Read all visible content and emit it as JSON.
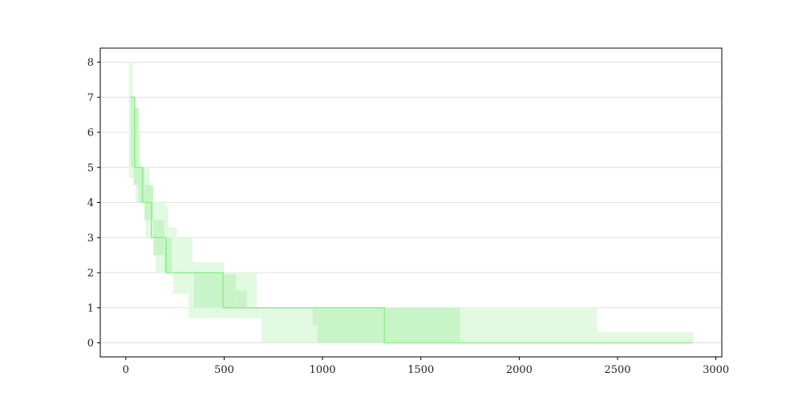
{
  "chart_data": {
    "type": "line",
    "title": "",
    "xlabel": "",
    "ylabel": "",
    "xlim": [
      -130,
      3030
    ],
    "ylim": [
      -0.4,
      8.4
    ],
    "x_ticks": [
      0,
      500,
      1000,
      1500,
      2000,
      2500,
      3000
    ],
    "y_ticks": [
      0,
      1,
      2,
      3,
      4,
      5,
      6,
      7,
      8
    ],
    "grid": {
      "y": true,
      "x": false
    },
    "legend": "none",
    "colors": {
      "line": "#90ee90",
      "inner_band": "#c8f5c8",
      "outer_band": "#e2f9e2",
      "grid": "#e0e0e0",
      "axis": "#000000"
    },
    "series": [
      {
        "role": "median",
        "points": [
          [
            20,
            7
          ],
          [
            45,
            7
          ],
          [
            45,
            5
          ],
          [
            85,
            5
          ],
          [
            85,
            4
          ],
          [
            130,
            4
          ],
          [
            130,
            3
          ],
          [
            205,
            3
          ],
          [
            205,
            2
          ],
          [
            495,
            2
          ],
          [
            495,
            1
          ],
          [
            1315,
            1
          ],
          [
            1315,
            0
          ],
          [
            2880,
            0
          ]
        ]
      }
    ],
    "bands": [
      {
        "role": "outer",
        "segments": [
          {
            "x": [
              15,
              35
            ],
            "y": [
              4.7,
              8
            ]
          },
          {
            "x": [
              35,
              50
            ],
            "y": [
              4.7,
              7
            ]
          },
          {
            "x": [
              50,
              75
            ],
            "y": [
              4,
              6
            ]
          },
          {
            "x": [
              75,
              100
            ],
            "y": [
              4,
              5
            ]
          },
          {
            "x": [
              100,
              120
            ],
            "y": [
              3,
              5
            ]
          },
          {
            "x": [
              120,
              150
            ],
            "y": [
              3,
              4
            ]
          },
          {
            "x": [
              150,
              200
            ],
            "y": [
              2,
              4
            ]
          },
          {
            "x": [
              200,
              215
            ],
            "y": [
              2,
              3.9
            ]
          },
          {
            "x": [
              215,
              240
            ],
            "y": [
              2,
              3.3
            ]
          },
          {
            "x": [
              240,
              260
            ],
            "y": [
              1.4,
              3.3
            ]
          },
          {
            "x": [
              260,
              320
            ],
            "y": [
              1.4,
              3
            ]
          },
          {
            "x": [
              320,
              340
            ],
            "y": [
              0.7,
              3
            ]
          },
          {
            "x": [
              340,
              500
            ],
            "y": [
              0.7,
              2.3
            ]
          },
          {
            "x": [
              500,
              665
            ],
            "y": [
              0.7,
              2
            ]
          },
          {
            "x": [
              665,
              690
            ],
            "y": [
              0.7,
              1
            ]
          },
          {
            "x": [
              690,
              980
            ],
            "y": [
              0,
              1
            ]
          },
          {
            "x": [
              980,
              2395
            ],
            "y": [
              0,
              1
            ]
          },
          {
            "x": [
              2395,
              2885
            ],
            "y": [
              0,
              0.3
            ]
          }
        ]
      },
      {
        "role": "inner",
        "segments": [
          {
            "x": [
              25,
              40
            ],
            "y": [
              5,
              7
            ]
          },
          {
            "x": [
              40,
              65
            ],
            "y": [
              4.5,
              6.7
            ]
          },
          {
            "x": [
              65,
              95
            ],
            "y": [
              4,
              5
            ]
          },
          {
            "x": [
              95,
              140
            ],
            "y": [
              3.5,
              4.5
            ]
          },
          {
            "x": [
              140,
              195
            ],
            "y": [
              2.5,
              3.5
            ]
          },
          {
            "x": [
              195,
              235
            ],
            "y": [
              2,
              3
            ]
          },
          {
            "x": [
              235,
              345
            ],
            "y": [
              2,
              2
            ]
          },
          {
            "x": [
              345,
              500
            ],
            "y": [
              1,
              2
            ]
          },
          {
            "x": [
              500,
              560
            ],
            "y": [
              1,
              1.95
            ]
          },
          {
            "x": [
              560,
              615
            ],
            "y": [
              1,
              1.5
            ]
          },
          {
            "x": [
              950,
              975
            ],
            "y": [
              0.5,
              1
            ]
          },
          {
            "x": [
              975,
              1315
            ],
            "y": [
              0,
              1
            ]
          },
          {
            "x": [
              1315,
              1700
            ],
            "y": [
              0,
              1
            ]
          }
        ]
      }
    ]
  }
}
